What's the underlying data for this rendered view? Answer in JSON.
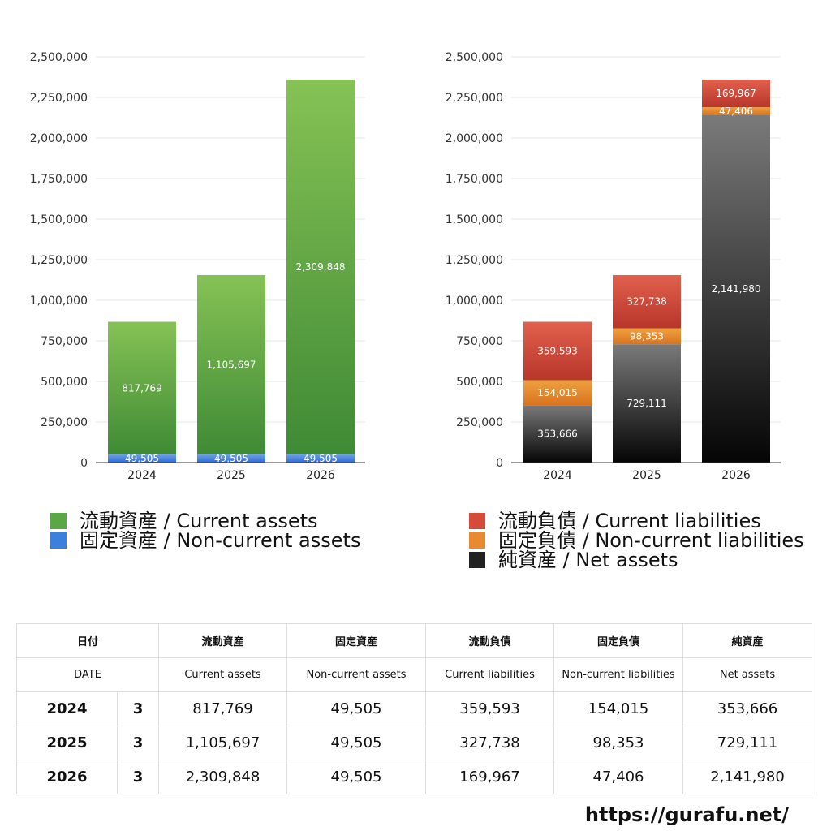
{
  "chart_data": [
    {
      "type": "bar",
      "stacked": true,
      "categories": [
        "2024",
        "2025",
        "2026"
      ],
      "ylim": [
        0,
        2500000
      ],
      "yticks": [
        0,
        250000,
        500000,
        750000,
        1000000,
        1250000,
        1500000,
        1750000,
        2000000,
        2250000,
        2500000
      ],
      "ytick_labels": [
        "0",
        "250,000",
        "500,000",
        "750,000",
        "1,000,000",
        "1,250,000",
        "1,500,000",
        "1,750,000",
        "2,000,000",
        "2,250,000",
        "2,500,000"
      ],
      "grid": true,
      "legend_position": "bottom",
      "series": [
        {
          "name": "固定資産 / Non-current assets",
          "key": "noncurrent-assets",
          "values": [
            49505,
            49505,
            49505
          ],
          "labels": [
            "49,505",
            "49,505",
            "49,505"
          ],
          "colors": [
            "#6aa0ea",
            "#2f6cd0"
          ]
        },
        {
          "name": "流動資産 / Current assets",
          "key": "current-assets",
          "values": [
            817769,
            1105697,
            2309848
          ],
          "labels": [
            "817,769",
            "1,105,697",
            "2,309,848"
          ],
          "colors": [
            "#86c255",
            "#3f8a35"
          ]
        }
      ]
    },
    {
      "type": "bar",
      "stacked": true,
      "categories": [
        "2024",
        "2025",
        "2026"
      ],
      "ylim": [
        0,
        2500000
      ],
      "yticks": [
        0,
        250000,
        500000,
        750000,
        1000000,
        1250000,
        1500000,
        1750000,
        2000000,
        2250000,
        2500000
      ],
      "ytick_labels": [
        "0",
        "250,000",
        "500,000",
        "750,000",
        "1,000,000",
        "1,250,000",
        "1,500,000",
        "1,750,000",
        "2,000,000",
        "2,250,000",
        "2,500,000"
      ],
      "grid": true,
      "legend_position": "bottom",
      "series": [
        {
          "name": "純資産 / Net assets",
          "key": "net-assets",
          "values": [
            353666,
            729111,
            2141980
          ],
          "labels": [
            "353,666",
            "729,111",
            "2,141,980"
          ],
          "colors": [
            "#7a7a7a",
            "#050505"
          ]
        },
        {
          "name": "固定負債 / Non-current liabilities",
          "key": "noncurrent-liabilities",
          "values": [
            154015,
            98353,
            47406
          ],
          "labels": [
            "154,015",
            "98,353",
            "47,406"
          ],
          "colors": [
            "#f0a040",
            "#d87420"
          ]
        },
        {
          "name": "流動負債 / Current liabilities",
          "key": "current-liabilities",
          "values": [
            359593,
            327738,
            169967
          ],
          "labels": [
            "359,593",
            "327,738",
            "169,967"
          ],
          "colors": [
            "#e2604d",
            "#b8362a"
          ]
        }
      ]
    }
  ],
  "legend_left": [
    {
      "label": "流動資産 / Current assets",
      "color": "#5aa845"
    },
    {
      "label": "固定資産 / Non-current assets",
      "color": "#3d7fdc"
    }
  ],
  "legend_right": [
    {
      "label": "流動負債 / Current liabilities",
      "color": "#d64a3a"
    },
    {
      "label": "固定負債 / Non-current liabilities",
      "color": "#e88a30"
    },
    {
      "label": "純資産 / Net assets",
      "color": "#222222"
    }
  ],
  "table": {
    "header_jp": {
      "date": "日付",
      "current_assets": "流動資産",
      "noncurrent_assets": "固定資産",
      "current_liabilities": "流動負債",
      "noncurrent_liabilities": "固定負債",
      "net_assets": "純資産"
    },
    "header_en": {
      "date": "DATE",
      "current_assets": "Current assets",
      "noncurrent_assets": "Non-current assets",
      "current_liabilities": "Current liabilities",
      "noncurrent_liabilities": "Non-current liabilities",
      "net_assets": "Net assets"
    },
    "rows": [
      {
        "year": "2024",
        "count": "3",
        "current_assets": "817,769",
        "noncurrent_assets": "49,505",
        "current_liabilities": "359,593",
        "noncurrent_liabilities": "154,015",
        "net_assets": "353,666"
      },
      {
        "year": "2025",
        "count": "3",
        "current_assets": "1,105,697",
        "noncurrent_assets": "49,505",
        "current_liabilities": "327,738",
        "noncurrent_liabilities": "98,353",
        "net_assets": "729,111"
      },
      {
        "year": "2026",
        "count": "3",
        "current_assets": "2,309,848",
        "noncurrent_assets": "49,505",
        "current_liabilities": "169,967",
        "noncurrent_liabilities": "47,406",
        "net_assets": "2,141,980"
      }
    ]
  },
  "footer": {
    "url": "https://gurafu.net/"
  }
}
